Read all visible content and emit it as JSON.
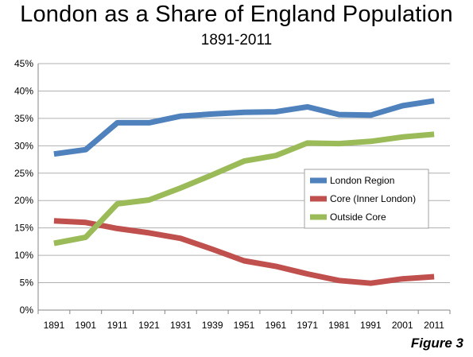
{
  "title": "London as a Share of England Population",
  "subtitle": "1891-2011",
  "figure_label": "Figure 3",
  "chart_data": {
    "type": "line",
    "title": "London as a Share of England Population",
    "subtitle": "1891-2011",
    "categories": [
      "1891",
      "1901",
      "1911",
      "1921",
      "1931",
      "1939",
      "1951",
      "1961",
      "1971",
      "1981",
      "1991",
      "2001",
      "2011"
    ],
    "y_ticks": [
      "0%",
      "5%",
      "10%",
      "15%",
      "20%",
      "25%",
      "30%",
      "35%",
      "40%",
      "45%"
    ],
    "ylim": [
      0,
      45
    ],
    "grid": true,
    "legend_position": "right",
    "series": [
      {
        "name": "London Region",
        "color": "#4F81BD",
        "values": [
          28.5,
          29.3,
          34.2,
          34.2,
          35.4,
          35.8,
          36.1,
          36.2,
          37.1,
          35.7,
          35.6,
          37.3,
          38.2
        ]
      },
      {
        "name": "Core (Inner London)",
        "color": "#C0504D",
        "values": [
          16.3,
          16.0,
          14.9,
          14.1,
          13.1,
          11.1,
          9.0,
          8.0,
          6.6,
          5.4,
          4.9,
          5.7,
          6.1
        ]
      },
      {
        "name": "Outside Core",
        "color": "#9BBB59",
        "values": [
          12.2,
          13.3,
          19.4,
          20.1,
          22.3,
          24.7,
          27.2,
          28.2,
          30.5,
          30.4,
          30.8,
          31.6,
          32.1
        ]
      }
    ]
  }
}
